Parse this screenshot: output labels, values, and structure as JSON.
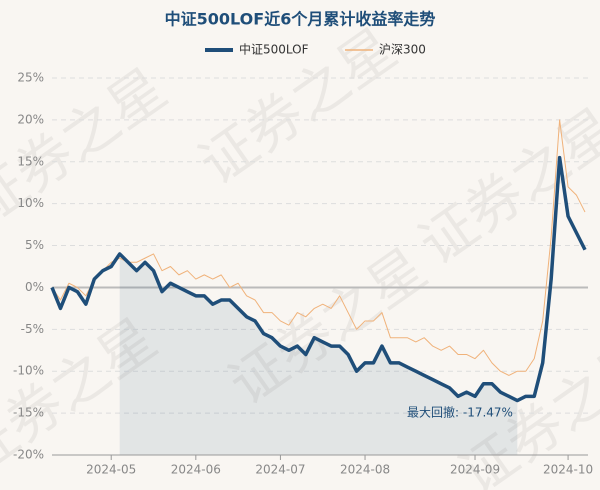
{
  "chart_data": {
    "type": "line",
    "title": "中证500LOF近6个月累计收益率走势",
    "watermark": "证券之星",
    "categories": [
      null,
      null,
      null,
      null,
      null,
      null,
      null,
      "2024-05",
      null,
      null,
      null,
      null,
      null,
      null,
      null,
      null,
      null,
      "2024-06",
      null,
      null,
      null,
      null,
      null,
      null,
      null,
      null,
      null,
      "2024-07",
      null,
      null,
      null,
      null,
      null,
      null,
      null,
      null,
      null,
      "2024-08",
      null,
      null,
      null,
      null,
      null,
      null,
      null,
      null,
      null,
      null,
      null,
      null,
      "2024-09",
      null,
      null,
      null,
      null,
      null,
      null,
      null,
      null,
      null,
      null,
      "2024-10",
      null,
      null
    ],
    "series": [
      {
        "name": "中证500LOF",
        "color": "#1f4e79",
        "values": [
          0,
          -2.5,
          0,
          -0.5,
          -2,
          1,
          2,
          2.5,
          4,
          3,
          2,
          3,
          2,
          -0.5,
          0.5,
          0,
          -0.5,
          -1,
          -1,
          -2,
          -1.5,
          -1.5,
          -2.5,
          -3.5,
          -4,
          -5.5,
          -6,
          -7,
          -7.5,
          -7,
          -8,
          -6,
          -6.5,
          -7,
          -7,
          -8,
          -10,
          -9,
          -9,
          -7,
          -9,
          -9,
          -9.5,
          -10,
          -10.5,
          -11,
          -11.5,
          -12,
          -13,
          -12.5,
          -13,
          -11.5,
          -11.5,
          -12.5,
          -13,
          -13.5,
          -13,
          -13,
          -9,
          1,
          15.5,
          8.5,
          6.5,
          4.5
        ]
      },
      {
        "name": "沪深300",
        "color": "#f0b27a",
        "values": [
          0,
          -1.5,
          0.5,
          0,
          -1,
          1,
          2,
          3,
          3.5,
          3,
          3,
          3.5,
          4,
          2,
          2.5,
          1.5,
          2,
          1,
          1.5,
          1,
          1.5,
          0,
          0.5,
          -1,
          -1.5,
          -3,
          -3,
          -4,
          -4.5,
          -3,
          -3.5,
          -2.5,
          -2,
          -2.5,
          -1,
          -3,
          -5,
          -4,
          -4,
          -3,
          -6,
          -6,
          -6,
          -6.5,
          -6,
          -7,
          -7.5,
          -7,
          -8,
          -8,
          -8.5,
          -7.5,
          -9,
          -10,
          -10.5,
          -10,
          -10,
          -8.5,
          -4,
          6,
          20,
          12,
          11,
          9
        ]
      }
    ],
    "max_drawdown": {
      "label": "最大回撤: -17.47%",
      "start": 8,
      "end": 55
    },
    "ylim": [
      -20,
      25
    ],
    "yticks": [
      {
        "value": -20,
        "label": "-20%"
      },
      {
        "value": -15,
        "label": "-15%"
      },
      {
        "value": -10,
        "label": "-10%"
      },
      {
        "value": -5,
        "label": "-5%"
      },
      {
        "value": 0,
        "label": "0%"
      },
      {
        "value": 5,
        "label": "5%"
      },
      {
        "value": 10,
        "label": "10%"
      },
      {
        "value": 15,
        "label": "15%"
      },
      {
        "value": 20,
        "label": "20%"
      },
      {
        "value": 25,
        "label": "25%"
      }
    ],
    "grid": true,
    "legend": "top"
  }
}
